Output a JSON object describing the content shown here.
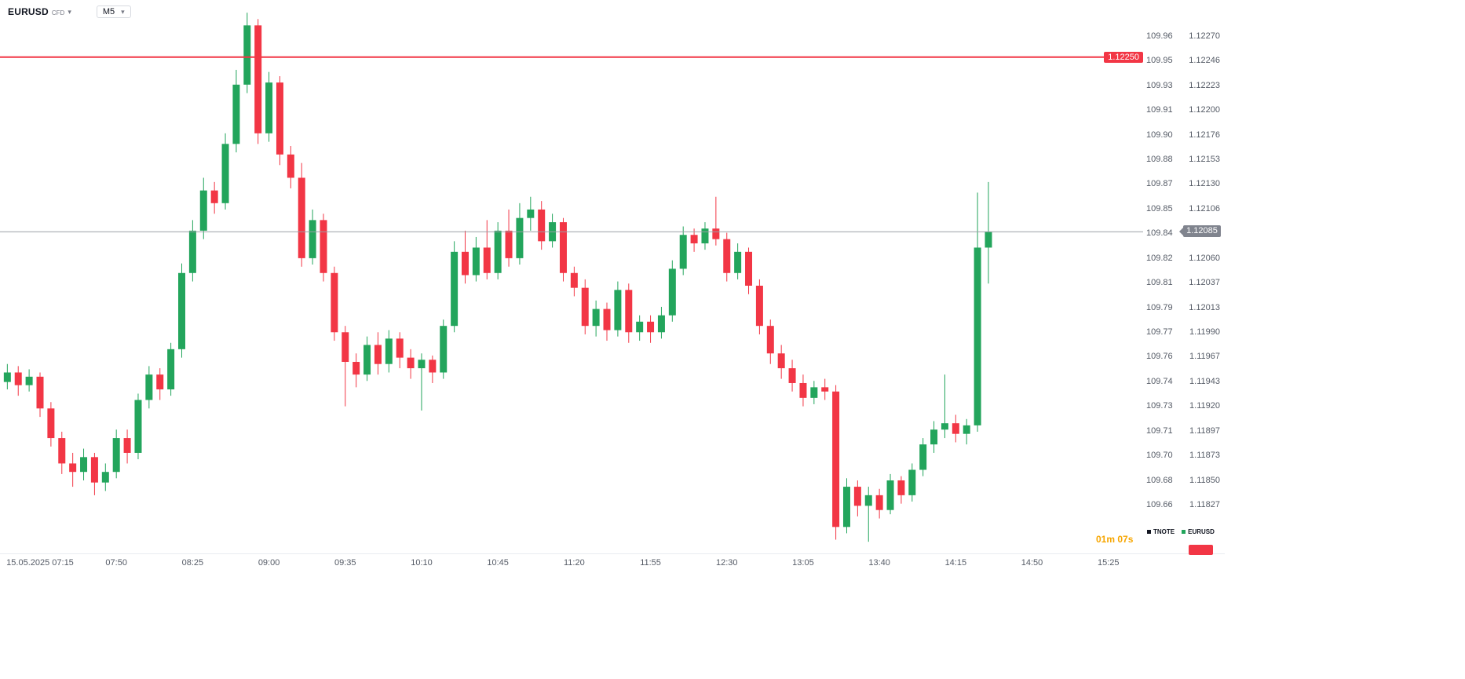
{
  "header": {
    "symbol": "EURUSD",
    "symbol_type": "CFD",
    "timeframe": "M5"
  },
  "chart_data": {
    "type": "candlestick",
    "title": "EURUSD CFD M5",
    "date": "15.05.2025",
    "price_axis": {
      "top": 1.12304,
      "bottom": 1.11781
    },
    "grid": "off",
    "colors": {
      "up": "#23a55c",
      "down": "#f23645"
    },
    "red_level_line": {
      "value": 1.1225,
      "label": "1.12250",
      "color": "#f23645"
    },
    "current_price": {
      "value": 1.12085,
      "label": "1.12085",
      "line_color": "#9aa0a6",
      "tag_color": "#80848e"
    },
    "candles": [
      [
        "07:00",
        1.11943,
        1.1196,
        1.11936,
        1.11952
      ],
      [
        "07:05",
        1.11952,
        1.11958,
        1.1193,
        1.1194
      ],
      [
        "07:10",
        1.1194,
        1.11955,
        1.11934,
        1.11948
      ],
      [
        "07:15",
        1.11948,
        1.11952,
        1.1191,
        1.11918
      ],
      [
        "07:20",
        1.11918,
        1.11924,
        1.11882,
        1.1189
      ],
      [
        "07:25",
        1.1189,
        1.11896,
        1.11856,
        1.11866
      ],
      [
        "07:30",
        1.11866,
        1.11876,
        1.11844,
        1.11858
      ],
      [
        "07:35",
        1.11858,
        1.1188,
        1.1185,
        1.11872
      ],
      [
        "07:40",
        1.11872,
        1.11876,
        1.11836,
        1.11848
      ],
      [
        "07:45",
        1.11848,
        1.11866,
        1.1184,
        1.11858
      ],
      [
        "07:50",
        1.11858,
        1.11898,
        1.11852,
        1.1189
      ],
      [
        "07:55",
        1.1189,
        1.11898,
        1.11866,
        1.11876
      ],
      [
        "08:00",
        1.11876,
        1.11932,
        1.1187,
        1.11926
      ],
      [
        "08:05",
        1.11926,
        1.11958,
        1.11918,
        1.1195
      ],
      [
        "08:10",
        1.1195,
        1.11956,
        1.11926,
        1.11936
      ],
      [
        "08:15",
        1.11936,
        1.1198,
        1.1193,
        1.11974
      ],
      [
        "08:20",
        1.11974,
        1.12055,
        1.11966,
        1.12046
      ],
      [
        "08:25",
        1.12046,
        1.12096,
        1.12038,
        1.12086
      ],
      [
        "08:30",
        1.12086,
        1.12136,
        1.12078,
        1.12124
      ],
      [
        "08:35",
        1.12124,
        1.12132,
        1.12102,
        1.12112
      ],
      [
        "08:40",
        1.12112,
        1.12178,
        1.12106,
        1.12168
      ],
      [
        "08:45",
        1.12168,
        1.12238,
        1.1216,
        1.12224
      ],
      [
        "08:50",
        1.12224,
        1.12292,
        1.12216,
        1.1228
      ],
      [
        "08:55",
        1.1228,
        1.12286,
        1.12168,
        1.12178
      ],
      [
        "09:00",
        1.12178,
        1.12236,
        1.1217,
        1.12226
      ],
      [
        "09:05",
        1.12226,
        1.12232,
        1.12148,
        1.12158
      ],
      [
        "09:10",
        1.12158,
        1.12166,
        1.12126,
        1.12136
      ],
      [
        "09:15",
        1.12136,
        1.1215,
        1.12052,
        1.1206
      ],
      [
        "09:20",
        1.1206,
        1.12106,
        1.12054,
        1.12096
      ],
      [
        "09:25",
        1.12096,
        1.12102,
        1.12038,
        1.12046
      ],
      [
        "09:30",
        1.12046,
        1.12052,
        1.11982,
        1.1199
      ],
      [
        "09:35",
        1.1199,
        1.11996,
        1.1192,
        1.11962
      ],
      [
        "09:40",
        1.11962,
        1.1197,
        1.11938,
        1.1195
      ],
      [
        "09:45",
        1.1195,
        1.11986,
        1.11944,
        1.11978
      ],
      [
        "09:50",
        1.11978,
        1.1199,
        1.1195,
        1.1196
      ],
      [
        "09:55",
        1.1196,
        1.11992,
        1.11952,
        1.11984
      ],
      [
        "10:00",
        1.11984,
        1.1199,
        1.11956,
        1.11966
      ],
      [
        "10:05",
        1.11966,
        1.11974,
        1.11946,
        1.11956
      ],
      [
        "10:10",
        1.11956,
        1.1197,
        1.11916,
        1.11964
      ],
      [
        "10:15",
        1.11964,
        1.11968,
        1.11942,
        1.11952
      ],
      [
        "10:20",
        1.11952,
        1.12002,
        1.11946,
        1.11996
      ],
      [
        "10:25",
        1.11996,
        1.12076,
        1.1199,
        1.12066
      ],
      [
        "10:30",
        1.12066,
        1.12086,
        1.12036,
        1.12044
      ],
      [
        "10:35",
        1.12044,
        1.1208,
        1.12038,
        1.1207
      ],
      [
        "10:40",
        1.1207,
        1.12096,
        1.1204,
        1.12046
      ],
      [
        "10:45",
        1.12046,
        1.12094,
        1.1204,
        1.12086
      ],
      [
        "10:50",
        1.12086,
        1.12106,
        1.12052,
        1.1206
      ],
      [
        "10:55",
        1.1206,
        1.12112,
        1.12054,
        1.12098
      ],
      [
        "11:00",
        1.12098,
        1.12118,
        1.12086,
        1.12106
      ],
      [
        "11:05",
        1.12106,
        1.12114,
        1.12068,
        1.12076
      ],
      [
        "11:10",
        1.12076,
        1.12102,
        1.1207,
        1.12094
      ],
      [
        "11:15",
        1.12094,
        1.12098,
        1.12038,
        1.12046
      ],
      [
        "11:20",
        1.12046,
        1.12052,
        1.12024,
        1.12032
      ],
      [
        "11:25",
        1.12032,
        1.1204,
        1.11988,
        1.11996
      ],
      [
        "11:30",
        1.11996,
        1.1202,
        1.11986,
        1.12012
      ],
      [
        "11:35",
        1.12012,
        1.12018,
        1.11982,
        1.11992
      ],
      [
        "11:40",
        1.11992,
        1.12038,
        1.11986,
        1.1203
      ],
      [
        "11:45",
        1.1203,
        1.12036,
        1.1198,
        1.1199
      ],
      [
        "11:50",
        1.1199,
        1.12006,
        1.11982,
        1.12
      ],
      [
        "11:55",
        1.12,
        1.12006,
        1.1198,
        1.1199
      ],
      [
        "12:00",
        1.1199,
        1.12014,
        1.11984,
        1.12006
      ],
      [
        "12:05",
        1.12006,
        1.12058,
        1.12,
        1.1205
      ],
      [
        "12:10",
        1.1205,
        1.1209,
        1.12044,
        1.12082
      ],
      [
        "12:15",
        1.12082,
        1.12088,
        1.12066,
        1.12074
      ],
      [
        "12:20",
        1.12074,
        1.12094,
        1.12068,
        1.12088
      ],
      [
        "12:25",
        1.12088,
        1.12118,
        1.12072,
        1.12078
      ],
      [
        "12:30",
        1.12078,
        1.12084,
        1.12038,
        1.12046
      ],
      [
        "12:35",
        1.12046,
        1.12074,
        1.1204,
        1.12066
      ],
      [
        "12:40",
        1.12066,
        1.1207,
        1.12026,
        1.12034
      ],
      [
        "12:45",
        1.12034,
        1.1204,
        1.11988,
        1.11996
      ],
      [
        "12:50",
        1.11996,
        1.12002,
        1.1196,
        1.1197
      ],
      [
        "12:55",
        1.1197,
        1.11978,
        1.11946,
        1.11956
      ],
      [
        "13:00",
        1.11956,
        1.11964,
        1.11934,
        1.11942
      ],
      [
        "13:05",
        1.11942,
        1.1195,
        1.1192,
        1.11928
      ],
      [
        "13:10",
        1.11928,
        1.11944,
        1.11922,
        1.11938
      ],
      [
        "13:15",
        1.11938,
        1.11946,
        1.11926,
        1.11934
      ],
      [
        "13:20",
        1.11934,
        1.1194,
        1.11794,
        1.11806
      ],
      [
        "13:25",
        1.11806,
        1.11852,
        1.118,
        1.11844
      ],
      [
        "13:30",
        1.11844,
        1.1185,
        1.11816,
        1.11826
      ],
      [
        "13:35",
        1.11826,
        1.11844,
        1.11792,
        1.11836
      ],
      [
        "13:40",
        1.11836,
        1.11842,
        1.11814,
        1.11822
      ],
      [
        "13:45",
        1.11822,
        1.11856,
        1.11818,
        1.1185
      ],
      [
        "13:50",
        1.1185,
        1.11854,
        1.11828,
        1.11836
      ],
      [
        "13:55",
        1.11836,
        1.11866,
        1.1183,
        1.1186
      ],
      [
        "14:00",
        1.1186,
        1.1189,
        1.11854,
        1.11884
      ],
      [
        "14:05",
        1.11884,
        1.11906,
        1.11876,
        1.11898
      ],
      [
        "14:10",
        1.11898,
        1.1195,
        1.1189,
        1.11904
      ],
      [
        "14:15",
        1.11904,
        1.11912,
        1.11886,
        1.11894
      ],
      [
        "14:20",
        1.11894,
        1.11908,
        1.11884,
        1.11902
      ],
      [
        "14:25",
        1.11902,
        1.12122,
        1.11896,
        1.1207
      ],
      [
        "14:30",
        1.1207,
        1.12132,
        1.12036,
        1.12085
      ]
    ]
  },
  "price_scale": {
    "rows": [
      {
        "tnote": "109.96",
        "eurusd": "1.12270"
      },
      {
        "tnote": "109.95",
        "eurusd": "1.12246"
      },
      {
        "tnote": "109.93",
        "eurusd": "1.12223"
      },
      {
        "tnote": "109.91",
        "eurusd": "1.12200"
      },
      {
        "tnote": "109.90",
        "eurusd": "1.12176"
      },
      {
        "tnote": "109.88",
        "eurusd": "1.12153"
      },
      {
        "tnote": "109.87",
        "eurusd": "1.12130"
      },
      {
        "tnote": "109.85",
        "eurusd": "1.12106"
      },
      {
        "tnote": "109.84",
        "eurusd": ""
      },
      {
        "tnote": "109.82",
        "eurusd": "1.12060"
      },
      {
        "tnote": "109.81",
        "eurusd": "1.12037"
      },
      {
        "tnote": "109.79",
        "eurusd": "1.12013"
      },
      {
        "tnote": "109.77",
        "eurusd": "1.11990"
      },
      {
        "tnote": "109.76",
        "eurusd": "1.11967"
      },
      {
        "tnote": "109.74",
        "eurusd": "1.11943"
      },
      {
        "tnote": "109.73",
        "eurusd": "1.11920"
      },
      {
        "tnote": "109.71",
        "eurusd": "1.11897"
      },
      {
        "tnote": "109.70",
        "eurusd": "1.11873"
      },
      {
        "tnote": "109.68",
        "eurusd": "1.11850"
      },
      {
        "tnote": "109.66",
        "eurusd": "1.11827"
      }
    ]
  },
  "time_axis": {
    "labels": [
      "15.05.2025 07:15",
      "07:50",
      "08:25",
      "09:00",
      "09:35",
      "10:10",
      "10:45",
      "11:20",
      "11:55",
      "12:30",
      "13:05",
      "13:40",
      "14:15",
      "14:50",
      "15:25"
    ]
  },
  "legend": {
    "items": [
      {
        "label": "TNOTE",
        "color": "#131722"
      },
      {
        "label": "EURUSD",
        "color": "#23a55c"
      }
    ]
  },
  "countdown": {
    "text": "01m 07s",
    "color": "#f7a600"
  },
  "bottom_right_tag": {
    "color": "#f23645",
    "text": ""
  }
}
